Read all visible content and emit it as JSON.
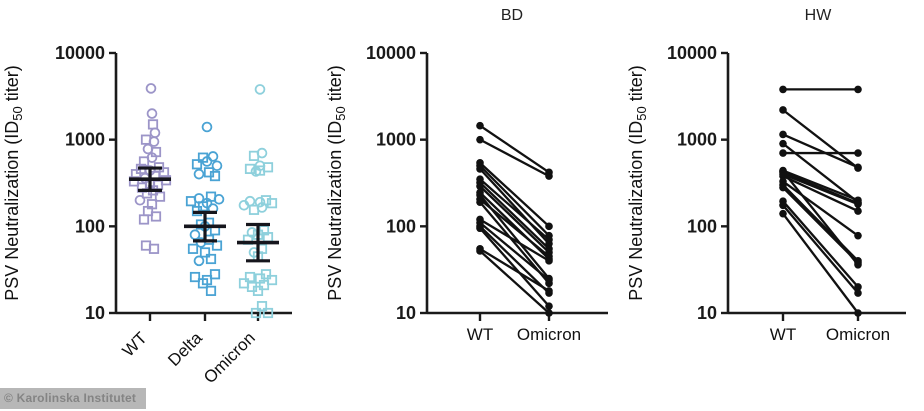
{
  "watermark": {
    "text": "© Karolinska Institutet"
  },
  "y_axis": {
    "title_pre": "PSV Neutralization (ID",
    "title_sub": "50",
    "title_post": " titer)",
    "scale": "log10",
    "ylim": [
      10,
      10000
    ],
    "ticks": [
      {
        "label": "10000",
        "value": 10000
      },
      {
        "label": "1000",
        "value": 1000
      },
      {
        "label": "100",
        "value": 100
      },
      {
        "label": "10",
        "value": 10
      }
    ]
  },
  "chart_data": [
    {
      "type": "scatter",
      "title": "",
      "subtitle": "jittered column scatter with median and IQR error bars, log y-axis",
      "categories": [
        "WT",
        "Delta",
        "Omicron"
      ],
      "marker_legend": {
        "c": "open circle",
        "s": "open square"
      },
      "series": [
        {
          "name": "WT",
          "color": "#9c95c8",
          "points": [
            [
              3900,
              1,
              "c"
            ],
            [
              2000,
              2,
              "c"
            ],
            [
              1500,
              3,
              "s"
            ],
            [
              1200,
              5,
              "c"
            ],
            [
              1000,
              -4,
              "s"
            ],
            [
              950,
              4,
              "c"
            ],
            [
              780,
              -2,
              "c"
            ],
            [
              720,
              6,
              "s"
            ],
            [
              620,
              2,
              "c"
            ],
            [
              560,
              -6,
              "s"
            ],
            [
              480,
              9,
              "s"
            ],
            [
              460,
              -9,
              "s"
            ],
            [
              440,
              0,
              "c"
            ],
            [
              420,
              14,
              "s"
            ],
            [
              400,
              -14,
              "s"
            ],
            [
              380,
              5,
              "s"
            ],
            [
              360,
              -5,
              "c"
            ],
            [
              340,
              16,
              "s"
            ],
            [
              330,
              -16,
              "s"
            ],
            [
              310,
              0,
              "s"
            ],
            [
              300,
              8,
              "s"
            ],
            [
              280,
              -8,
              "s"
            ],
            [
              260,
              3,
              "s"
            ],
            [
              240,
              -3,
              "s"
            ],
            [
              220,
              10,
              "s"
            ],
            [
              200,
              -10,
              "c"
            ],
            [
              180,
              2,
              "s"
            ],
            [
              150,
              -2,
              "s"
            ],
            [
              130,
              6,
              "s"
            ],
            [
              120,
              -6,
              "s"
            ],
            [
              60,
              -4,
              "s"
            ],
            [
              55,
              4,
              "s"
            ]
          ]
        },
        {
          "name": "Delta",
          "color": "#4aa3d4",
          "points": [
            [
              1400,
              2,
              "c"
            ],
            [
              640,
              8,
              "c"
            ],
            [
              620,
              -2,
              "s"
            ],
            [
              560,
              2,
              "c"
            ],
            [
              520,
              -8,
              "s"
            ],
            [
              500,
              12,
              "c"
            ],
            [
              420,
              4,
              "s"
            ],
            [
              400,
              -6,
              "c"
            ],
            [
              380,
              10,
              "s"
            ],
            [
              220,
              6,
              "s"
            ],
            [
              210,
              -6,
              "c"
            ],
            [
              205,
              14,
              "c"
            ],
            [
              195,
              -14,
              "s"
            ],
            [
              185,
              2,
              "c"
            ],
            [
              170,
              -2,
              "s"
            ],
            [
              160,
              8,
              "c"
            ],
            [
              150,
              -8,
              "s"
            ],
            [
              110,
              4,
              "s"
            ],
            [
              105,
              -4,
              "s"
            ],
            [
              100,
              0,
              "c"
            ],
            [
              90,
              10,
              "s"
            ],
            [
              80,
              -10,
              "c"
            ],
            [
              70,
              4,
              "s"
            ],
            [
              65,
              -4,
              "c"
            ],
            [
              60,
              12,
              "s"
            ],
            [
              55,
              -12,
              "s"
            ],
            [
              50,
              0,
              "s"
            ],
            [
              42,
              6,
              "s"
            ],
            [
              40,
              -6,
              "c"
            ],
            [
              28,
              10,
              "s"
            ],
            [
              26,
              -10,
              "s"
            ],
            [
              24,
              2,
              "s"
            ],
            [
              22,
              -2,
              "s"
            ],
            [
              18,
              6,
              "s"
            ]
          ]
        },
        {
          "name": "Omicron",
          "color": "#8ed0dc",
          "points": [
            [
              3800,
              2,
              "c"
            ],
            [
              700,
              4,
              "c"
            ],
            [
              650,
              -4,
              "s"
            ],
            [
              500,
              2,
              "c"
            ],
            [
              480,
              10,
              "s"
            ],
            [
              460,
              -8,
              "s"
            ],
            [
              440,
              2,
              "s"
            ],
            [
              430,
              -2,
              "c"
            ],
            [
              200,
              8,
              "s"
            ],
            [
              195,
              -8,
              "c"
            ],
            [
              190,
              2,
              "c"
            ],
            [
              185,
              14,
              "s"
            ],
            [
              175,
              -14,
              "c"
            ],
            [
              165,
              4,
              "c"
            ],
            [
              155,
              -4,
              "s"
            ],
            [
              90,
              6,
              "s"
            ],
            [
              85,
              -6,
              "c"
            ],
            [
              80,
              0,
              "s"
            ],
            [
              75,
              10,
              "s"
            ],
            [
              70,
              -10,
              "s"
            ],
            [
              55,
              4,
              "s"
            ],
            [
              50,
              -4,
              "c"
            ],
            [
              45,
              0,
              "s"
            ],
            [
              28,
              8,
              "s"
            ],
            [
              26,
              -8,
              "s"
            ],
            [
              25,
              2,
              "s"
            ],
            [
              24,
              14,
              "s"
            ],
            [
              22,
              -14,
              "s"
            ],
            [
              21,
              6,
              "s"
            ],
            [
              20,
              -6,
              "s"
            ],
            [
              18,
              0,
              "s"
            ],
            [
              12,
              4,
              "s"
            ],
            [
              10,
              -2,
              "s"
            ],
            [
              10,
              10,
              "s"
            ]
          ]
        }
      ],
      "error_bars": [
        {
          "category": "WT",
          "median": 350,
          "lower": 260,
          "upper": 470
        },
        {
          "category": "Delta",
          "median": 100,
          "lower": 68,
          "upper": 145
        },
        {
          "category": "Omicron",
          "median": 65,
          "lower": 40,
          "upper": 105
        }
      ],
      "error_bar_color": "#16161d"
    },
    {
      "type": "line",
      "title": "BD",
      "subtitle": "before/after paired titers, log y-axis",
      "categories": [
        "WT",
        "Omicron"
      ],
      "line_color": "#111111",
      "pairs": [
        [
          1450,
          420
        ],
        [
          1000,
          380
        ],
        [
          540,
          100
        ],
        [
          500,
          78
        ],
        [
          460,
          63
        ],
        [
          350,
          70
        ],
        [
          320,
          55
        ],
        [
          290,
          50
        ],
        [
          245,
          42
        ],
        [
          230,
          25
        ],
        [
          205,
          45
        ],
        [
          190,
          22
        ],
        [
          120,
          40
        ],
        [
          110,
          24
        ],
        [
          100,
          17
        ],
        [
          95,
          12
        ],
        [
          55,
          18
        ],
        [
          52,
          10
        ]
      ]
    },
    {
      "type": "line",
      "title": "HW",
      "subtitle": "before/after paired titers, log y-axis",
      "categories": [
        "WT",
        "Omicron"
      ],
      "line_color": "#111111",
      "pairs": [
        [
          3800,
          3800
        ],
        [
          2200,
          470
        ],
        [
          1150,
          480
        ],
        [
          900,
          190
        ],
        [
          700,
          700
        ],
        [
          440,
          200
        ],
        [
          430,
          36
        ],
        [
          420,
          185
        ],
        [
          400,
          180
        ],
        [
          380,
          150
        ],
        [
          330,
          78
        ],
        [
          300,
          40
        ],
        [
          280,
          38
        ],
        [
          195,
          20
        ],
        [
          175,
          17
        ],
        [
          140,
          10
        ]
      ]
    }
  ]
}
